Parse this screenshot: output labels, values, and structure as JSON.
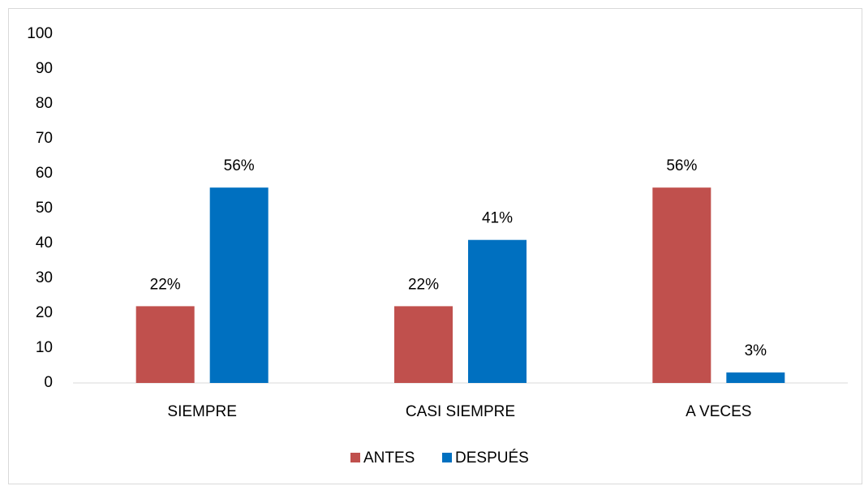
{
  "chart_data": {
    "type": "bar",
    "categories": [
      "SIEMPRE",
      "CASI SIEMPRE",
      "A VECES"
    ],
    "series": [
      {
        "name": "ANTES",
        "color": "#c0504d",
        "values": [
          22,
          22,
          56
        ],
        "value_labels": [
          "22%",
          "22%",
          "56%"
        ]
      },
      {
        "name": "DESPUÉS",
        "color": "#0070c0",
        "values": [
          56,
          41,
          3
        ],
        "value_labels": [
          "56%",
          "41%",
          "3%"
        ]
      }
    ],
    "ylim": [
      0,
      100
    ],
    "yticks": [
      0,
      10,
      20,
      30,
      40,
      50,
      60,
      70,
      80,
      90,
      100
    ],
    "grid": false,
    "legend": "bottom"
  }
}
